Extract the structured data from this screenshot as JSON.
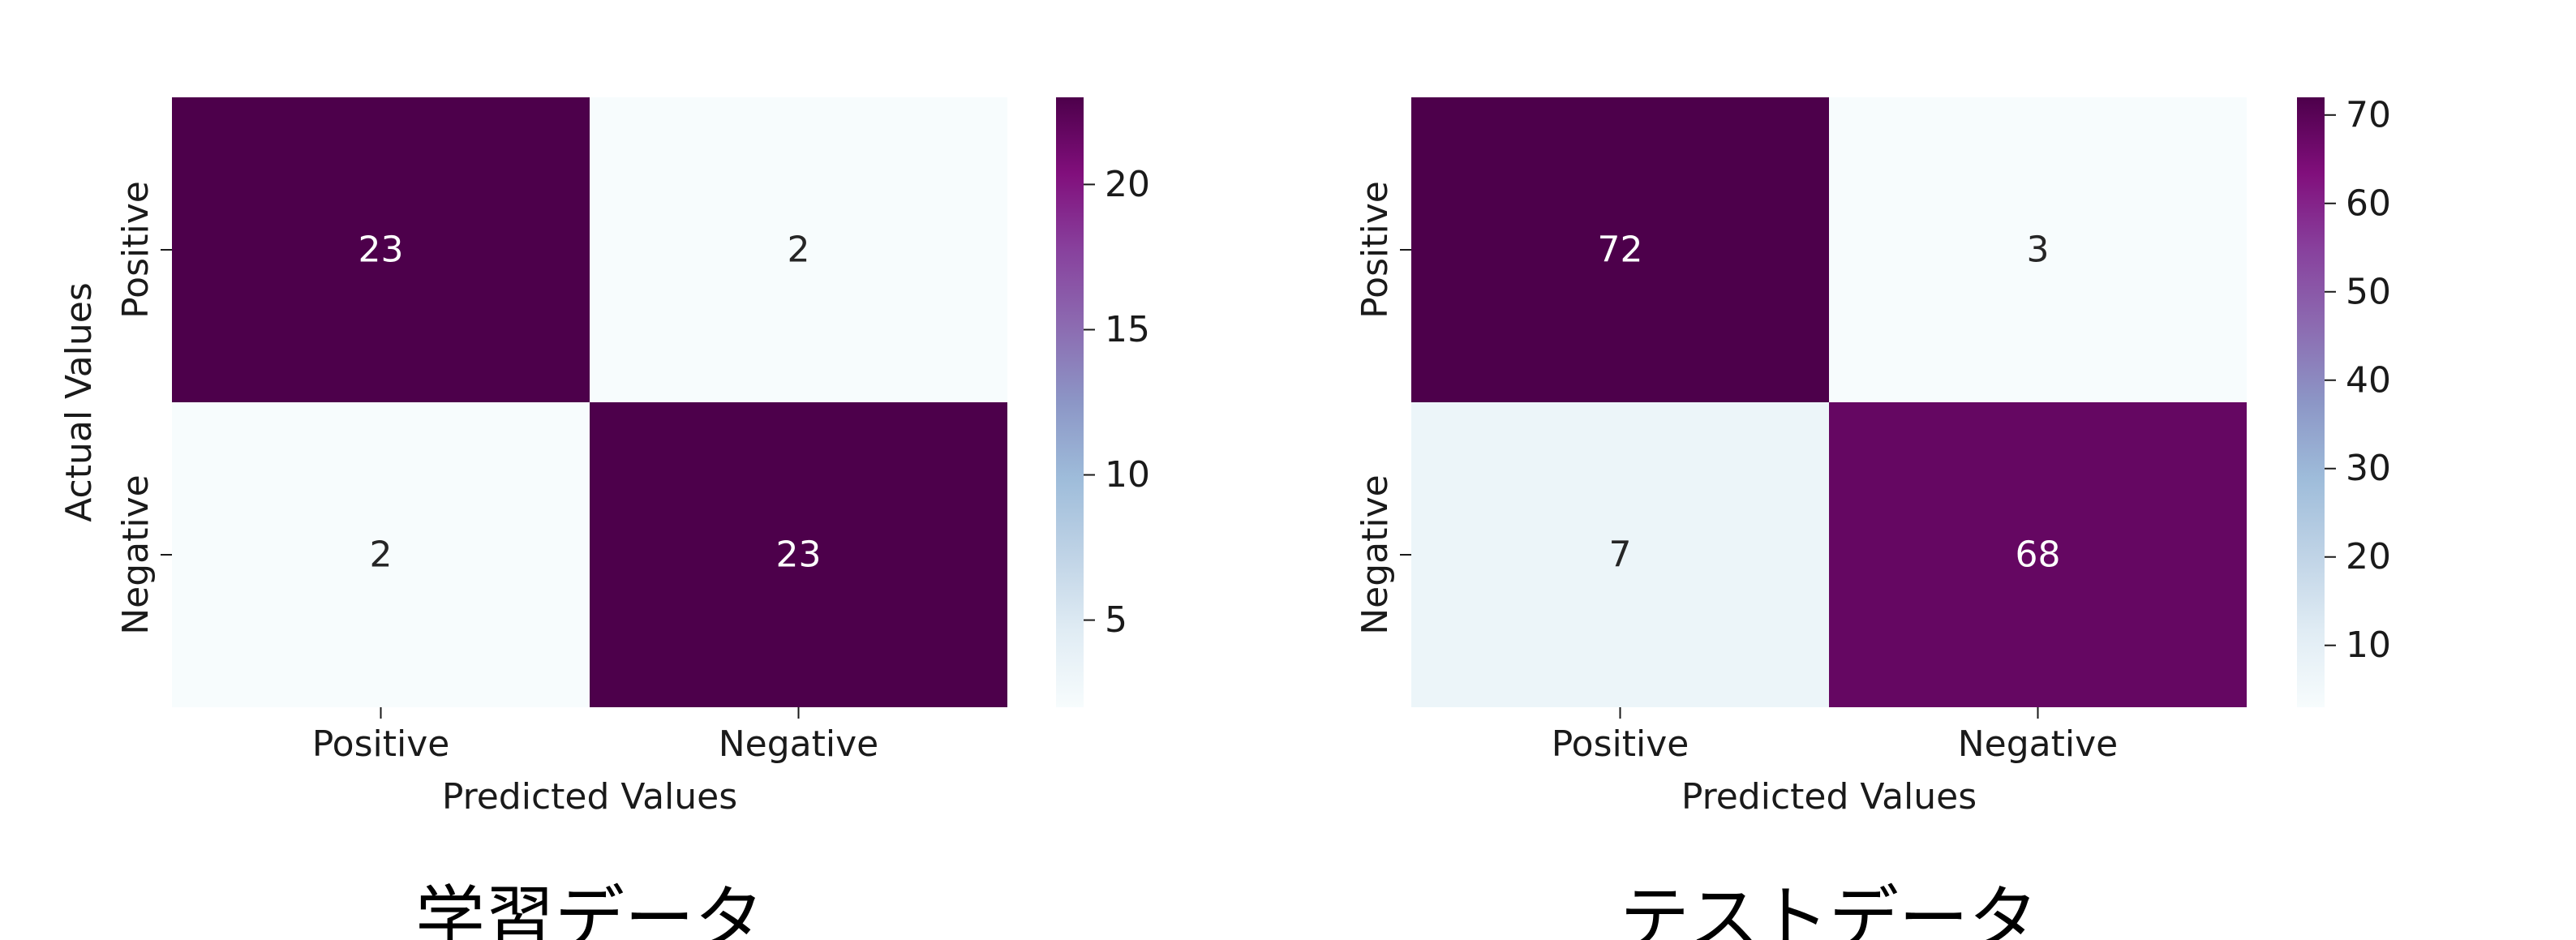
{
  "chart_data": [
    {
      "type": "heatmap",
      "title": "学習データ",
      "xlabel": "Predicted Values",
      "ylabel": "Actual Values",
      "x_categories": [
        "Positive",
        "Negative"
      ],
      "y_categories": [
        "Positive",
        "Negative"
      ],
      "values": [
        [
          23,
          2
        ],
        [
          2,
          23
        ]
      ],
      "colormap": "BuPu",
      "color_range": [
        2,
        23
      ],
      "colorbar_ticks": [
        5,
        10,
        15,
        20
      ]
    },
    {
      "type": "heatmap",
      "title": "テストデータ",
      "xlabel": "Predicted Values",
      "ylabel": "",
      "x_categories": [
        "Positive",
        "Negative"
      ],
      "y_categories": [
        "Positive",
        "Negative"
      ],
      "values": [
        [
          72,
          3
        ],
        [
          7,
          68
        ]
      ],
      "colormap": "BuPu",
      "color_range": [
        3,
        72
      ],
      "colorbar_ticks": [
        10,
        20,
        30,
        40,
        50,
        60,
        70
      ]
    }
  ],
  "colors": {
    "colormap_stops": [
      "#f7fcfd",
      "#e0ecf4",
      "#bfd3e6",
      "#9ebcda",
      "#8c96c6",
      "#8c6bb1",
      "#88419d",
      "#810f7c",
      "#4d004b"
    ],
    "text_dark": "#262626",
    "text_light": "#ffffff"
  }
}
